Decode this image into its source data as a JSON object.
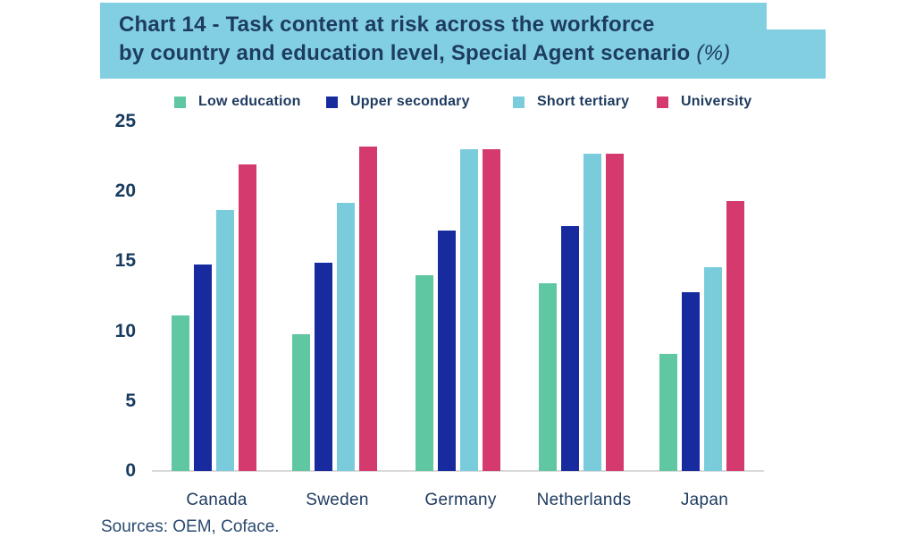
{
  "title": {
    "line1": "Chart 14 - Task content at risk across the workforce",
    "line2": "by country and education level, Special Agent scenario",
    "suffix": "(%)"
  },
  "source": "Sources: OEM, Coface.",
  "colors": {
    "title_background": "#83cfe2",
    "text_navy": "#1d3a5f",
    "axis_line": "#d9d9d9"
  },
  "chart_data": {
    "type": "bar",
    "title": "Chart 14 - Task content at risk across the workforce by country and education level, Special Agent scenario (%)",
    "categories": [
      "Canada",
      "Sweden",
      "Germany",
      "Netherlands",
      "Japan"
    ],
    "series": [
      {
        "name": "Low education",
        "color": "#5fc7a1",
        "values": [
          11.1,
          9.8,
          14.0,
          13.4,
          8.4
        ]
      },
      {
        "name": "Upper secondary",
        "color": "#172b9e",
        "values": [
          14.8,
          14.9,
          17.2,
          17.5,
          12.8
        ]
      },
      {
        "name": "Short tertiary",
        "color": "#7accdd",
        "values": [
          18.7,
          19.2,
          23.0,
          22.7,
          14.6
        ]
      },
      {
        "name": "University",
        "color": "#d43a6d",
        "values": [
          21.9,
          23.2,
          23.0,
          22.7,
          19.3
        ]
      }
    ],
    "xlabel": "",
    "ylabel": "",
    "ylim": [
      0,
      25
    ],
    "yticks": [
      0,
      5,
      10,
      15,
      20,
      25
    ],
    "grid": false,
    "legend_position": "top"
  }
}
